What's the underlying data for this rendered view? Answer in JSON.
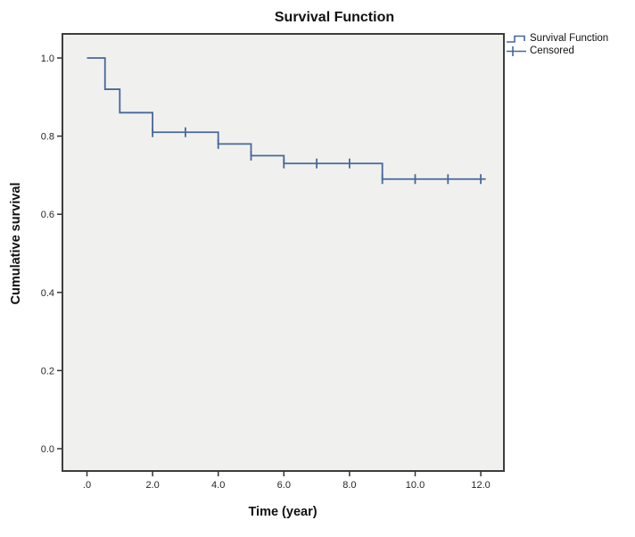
{
  "chart": {
    "title": "Survival Function",
    "xlabel": "Time (year)",
    "ylabel": "Cumulative survival",
    "legend_items": [
      {
        "label": "Survival Function",
        "symbol": "step-line"
      },
      {
        "label": "Censored",
        "symbol": "plus-tick"
      }
    ],
    "colors": {
      "line": "#46689b",
      "plot_bg": "#f0f1ee",
      "frame": "#3d3d3d",
      "tick": "#333333",
      "text": "#262626"
    }
  },
  "chart_data": {
    "type": "line",
    "subtype": "kaplan_meier_step",
    "title": "Survival Function",
    "xlabel": "Time (year)",
    "ylabel": "Cumulative survival",
    "xlim": [
      -0.8,
      12.7
    ],
    "ylim": [
      -0.06,
      1.06
    ],
    "grid": false,
    "legend_position": "top-right-outside",
    "x_ticks": [
      0,
      2,
      4,
      6,
      8,
      10,
      12
    ],
    "x_tick_labels": [
      ".0",
      "2.0",
      "4.0",
      "6.0",
      "8.0",
      "10.0",
      "12.0"
    ],
    "y_ticks": [
      1.0,
      0.8,
      0.6,
      0.4,
      0.2,
      0.0
    ],
    "y_tick_labels": [
      "1.0",
      "0.8",
      "0.6",
      "0.4",
      "0.2",
      "0.0"
    ],
    "series": [
      {
        "name": "Survival Function",
        "steps": [
          {
            "time": 0.0,
            "survival": 1.0
          },
          {
            "time": 0.55,
            "survival": 0.92
          },
          {
            "time": 1.0,
            "survival": 0.86
          },
          {
            "time": 2.0,
            "survival": 0.81
          },
          {
            "time": 4.0,
            "survival": 0.78
          },
          {
            "time": 5.0,
            "survival": 0.75
          },
          {
            "time": 6.0,
            "survival": 0.73
          },
          {
            "time": 9.0,
            "survival": 0.69
          }
        ],
        "end_time": 12.15
      }
    ],
    "censored_points": [
      {
        "time": 2.0,
        "survival": 0.81
      },
      {
        "time": 3.0,
        "survival": 0.81
      },
      {
        "time": 4.0,
        "survival": 0.78
      },
      {
        "time": 5.0,
        "survival": 0.75
      },
      {
        "time": 6.0,
        "survival": 0.73
      },
      {
        "time": 7.0,
        "survival": 0.73
      },
      {
        "time": 8.0,
        "survival": 0.73
      },
      {
        "time": 9.0,
        "survival": 0.69
      },
      {
        "time": 10.0,
        "survival": 0.69
      },
      {
        "time": 11.0,
        "survival": 0.69
      },
      {
        "time": 12.0,
        "survival": 0.69
      }
    ]
  }
}
